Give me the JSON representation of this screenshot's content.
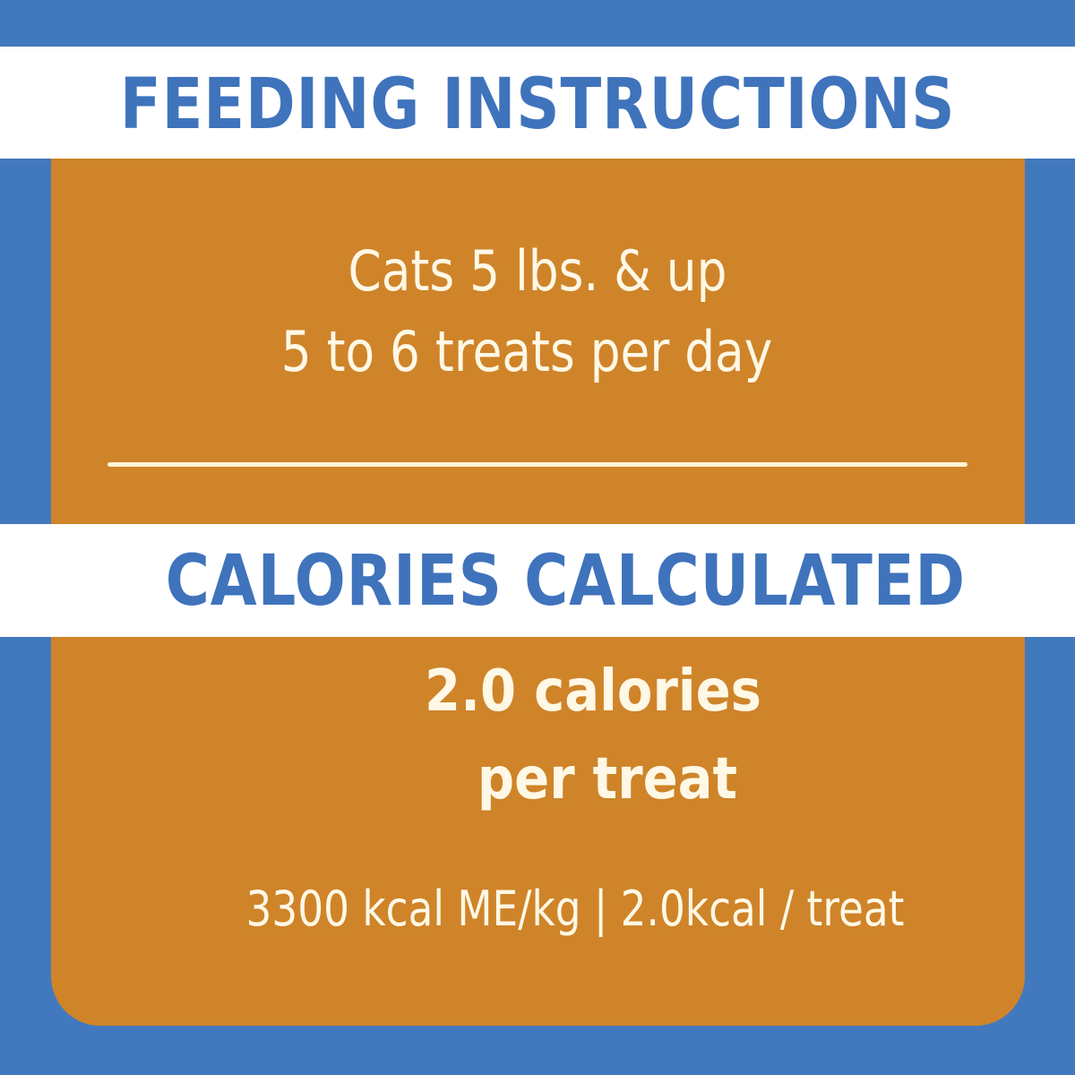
{
  "colors": {
    "background_blue": "#4279BE",
    "panel_orange": "#CF8429",
    "band_white": "#FFFFFF",
    "heading_blue": "#3F73BC",
    "body_text": "#FFF8E6"
  },
  "feeding": {
    "heading": "FEEDING INSTRUCTIONS",
    "lines": [
      "Cats 5 lbs. & up",
      "5 to 6 treats per day"
    ]
  },
  "calories": {
    "heading": "CALORIES CALCULATED",
    "headline_lines": [
      "2.0 calories",
      "per treat"
    ],
    "detail": "3300 kcal ME/kg | 2.0kcal / treat"
  }
}
